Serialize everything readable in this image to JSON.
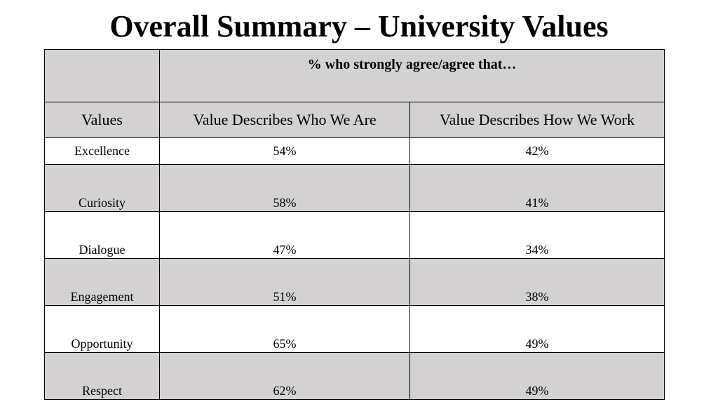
{
  "title": "Overall Summary – University Values",
  "chart_data": {
    "type": "table",
    "group_header": "% who strongly agree/agree that…",
    "columns": [
      "Values",
      "Value Describes Who We Are",
      "Value Describes How We Work"
    ],
    "rows": [
      {
        "value": "Excellence",
        "who_we_are": "54%",
        "how_we_work": "42%"
      },
      {
        "value": "Curiosity",
        "who_we_are": "58%",
        "how_we_work": "41%"
      },
      {
        "value": "Dialogue",
        "who_we_are": "47%",
        "how_we_work": "34%"
      },
      {
        "value": "Engagement",
        "who_we_are": "51%",
        "how_we_work": "38%"
      },
      {
        "value": "Opportunity",
        "who_we_are": "65%",
        "how_we_work": "49%"
      },
      {
        "value": "Respect",
        "who_we_are": "62%",
        "how_we_work": "49%"
      }
    ]
  },
  "colors": {
    "gray_fill": "#d3d1d2",
    "white_fill": "#ffffff",
    "border": "#000000"
  }
}
